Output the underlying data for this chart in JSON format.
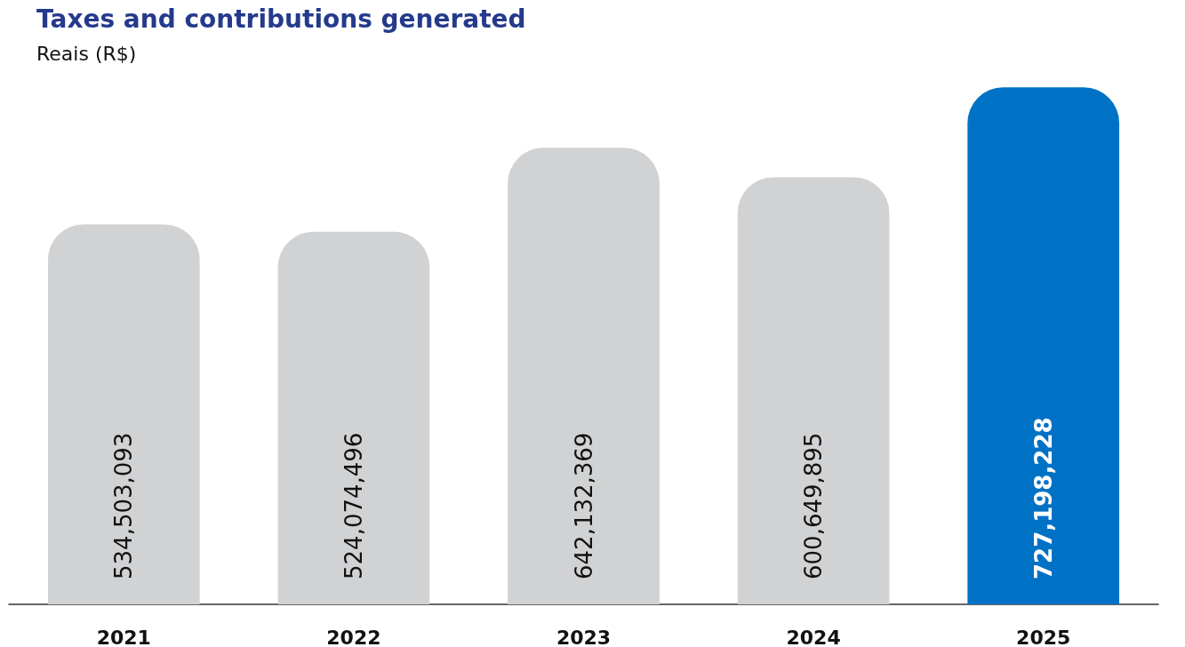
{
  "chart_data": {
    "type": "bar",
    "title": "Taxes and contributions generated",
    "subtitle": "Reais (R$)",
    "categories": [
      "2021",
      "2022",
      "2023",
      "2024",
      "2025"
    ],
    "values": [
      534503093,
      524074496,
      642132369,
      600649895,
      727198228
    ],
    "colors": [
      "#d1d2d4",
      "#d1d2d4",
      "#d1d2d4",
      "#d1d2d4",
      "#0072c6"
    ],
    "value_labels": [
      "534,503,093",
      "524,074,496",
      "642,132,369",
      "600,649,895",
      "727,198,228"
    ],
    "tick_labels": "x"
  }
}
